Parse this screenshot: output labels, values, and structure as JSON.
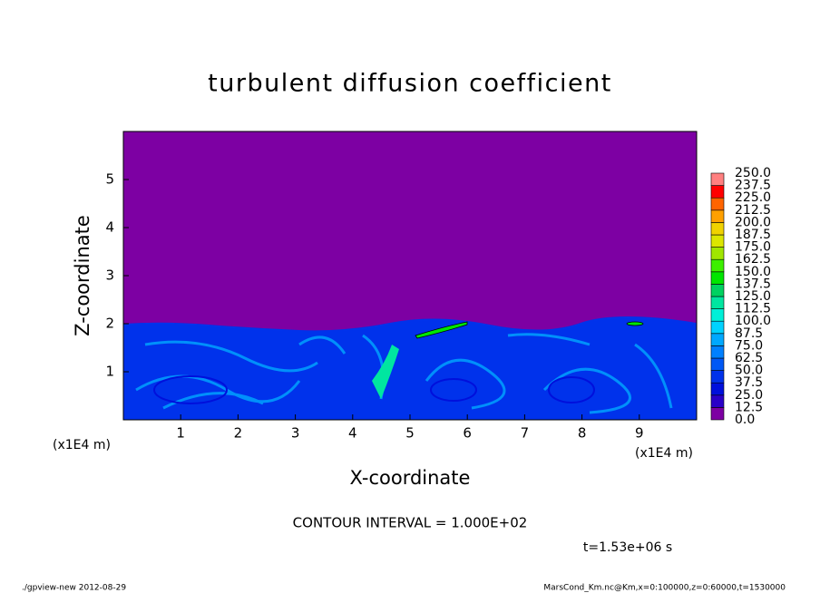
{
  "chart_data": {
    "type": "contour",
    "title": "turbulent diffusion coefficient",
    "xlabel": "X-coordinate",
    "ylabel": "Z-coordinate",
    "x_unit": "(x1E4 m)",
    "x_unit_right": "(x1E4 m)",
    "contour_interval": "CONTOUR INTERVAL = 1.000E+02",
    "time": "t=1.53e+06 s",
    "footer_left": "./gpview-new  2012-08-29",
    "footer_right": "MarsCond_Km.nc@Km,x=0:100000,z=0:60000,t=1530000",
    "xlim": [
      0,
      10
    ],
    "xticks": [
      1,
      2,
      3,
      4,
      5,
      6,
      7,
      8,
      9
    ],
    "ylim": [
      0,
      6
    ],
    "yticks": [
      1,
      2,
      3,
      4,
      5
    ],
    "colorbar": {
      "levels": [
        {
          "value": 0,
          "label": "0.0"
        },
        {
          "value": 12.5,
          "label": "12.5"
        },
        {
          "value": 25,
          "label": "25.0"
        },
        {
          "value": 37.5,
          "label": "37.5"
        },
        {
          "value": 50,
          "label": "50.0"
        },
        {
          "value": 62.5,
          "label": "62.5"
        },
        {
          "value": 75,
          "label": "75.0"
        },
        {
          "value": 87.5,
          "label": "87.5"
        },
        {
          "value": 100,
          "label": "100.0"
        },
        {
          "value": 112.5,
          "label": "112.5"
        },
        {
          "value": 125,
          "label": "125.0"
        },
        {
          "value": 137.5,
          "label": "137.5"
        },
        {
          "value": 150,
          "label": "150.0"
        },
        {
          "value": 162.5,
          "label": "162.5"
        },
        {
          "value": 175,
          "label": "175.0"
        },
        {
          "value": 187.5,
          "label": "187.5"
        },
        {
          "value": 200,
          "label": "200.0"
        },
        {
          "value": 212.5,
          "label": "212.5"
        },
        {
          "value": 225,
          "label": "225.0"
        },
        {
          "value": 237.5,
          "label": "237.5"
        },
        {
          "value": 250,
          "label": "250.0"
        }
      ],
      "colors": [
        "#7d00a3",
        "#2a00c8",
        "#0010dc",
        "#0032eb",
        "#0058f5",
        "#0080ff",
        "#00a8ff",
        "#00d2ff",
        "#00f0d8",
        "#00e6a0",
        "#00d260",
        "#00e600",
        "#3cf000",
        "#a0e600",
        "#dce600",
        "#f0d200",
        "#ffa000",
        "#ff6400",
        "#ff0000",
        "#ff8080"
      ]
    }
  }
}
